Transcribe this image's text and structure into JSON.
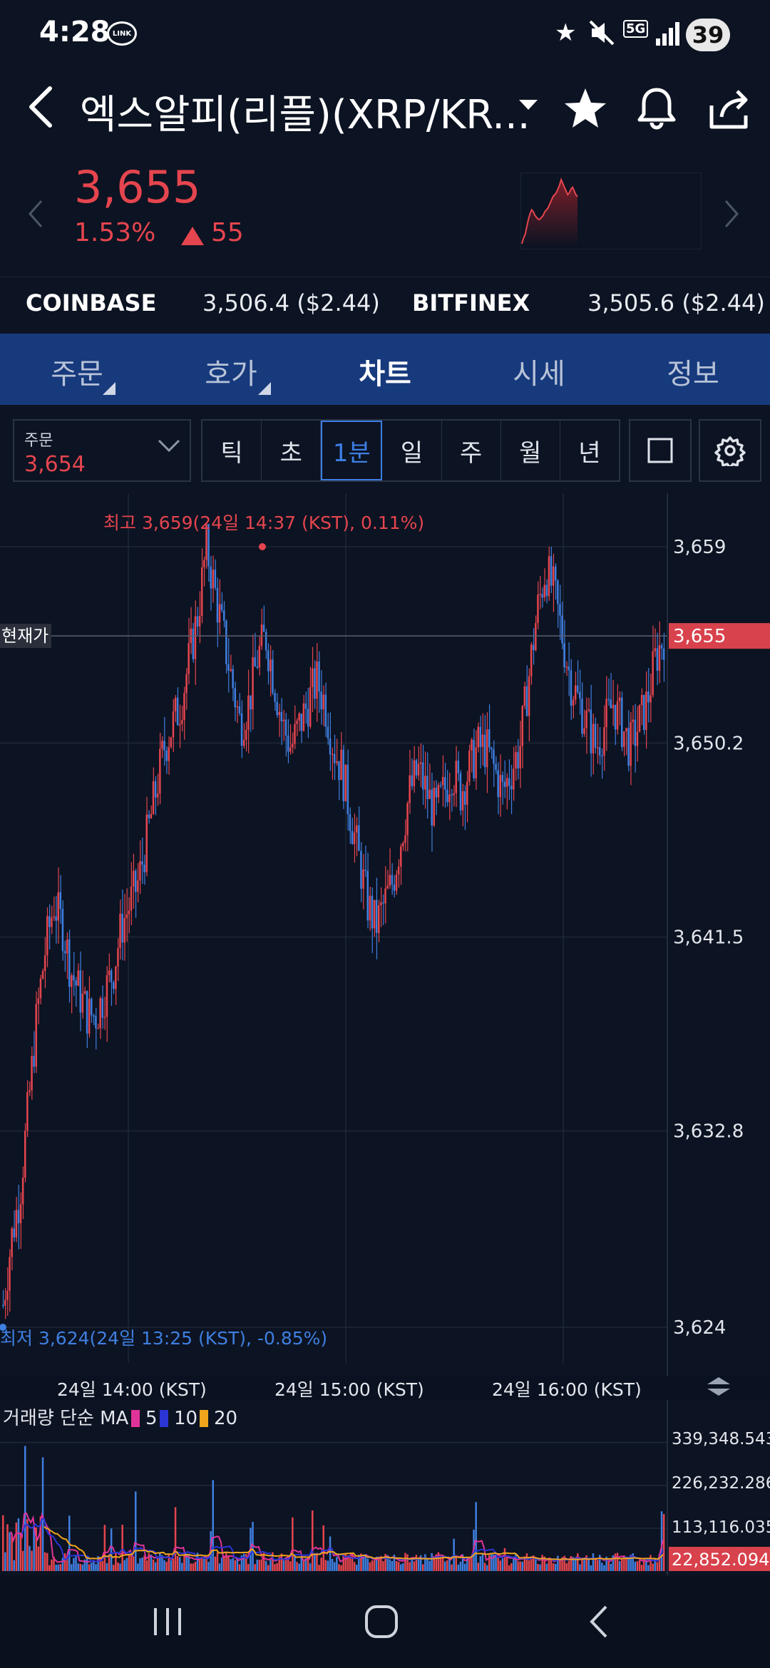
{
  "status_bar": {
    "time": "4:28",
    "link_badge": "LINK",
    "network": "5G",
    "battery": "39"
  },
  "header": {
    "title": "엑스알피(리플)(XRP/KR..."
  },
  "price": {
    "current": "3,655",
    "change_pct": "1.53%",
    "change_abs": "55",
    "direction_icon": "triangle-up-icon"
  },
  "exchanges": [
    {
      "name": "COINBASE",
      "value": "3,506.4 ($2.44)"
    },
    {
      "name": "BITFINEX",
      "value": "3,505.6 ($2.44)"
    }
  ],
  "tabs": [
    {
      "label": "주문"
    },
    {
      "label": "호가"
    },
    {
      "label": "차트"
    },
    {
      "label": "시세"
    },
    {
      "label": "정보"
    }
  ],
  "controls": {
    "order_label": "주문",
    "order_value": "3,654",
    "intervals": [
      "틱",
      "초",
      "1분",
      "일",
      "주",
      "월",
      "년"
    ],
    "active_interval": "1분"
  },
  "chart_data": {
    "type": "candlestick",
    "high_annotation": "최고 3,659(24일 14:37 (KST), 0.11%)",
    "low_annotation": "최저 3,624(24일 13:25 (KST), -0.85%)",
    "current_label": "현재가",
    "current_value": "3,655",
    "y_ticks": [
      "3,659",
      "3,650.2",
      "3,641.5",
      "3,632.8",
      "3,624"
    ],
    "ylim": [
      3624,
      3659
    ],
    "x_ticks": [
      "24일 14:00 (KST)",
      "24일 15:00 (KST)",
      "24일 16:00 (KST)"
    ],
    "close_path": [
      3625,
      3628,
      3630,
      3634,
      3638,
      3641,
      3643,
      3642,
      3640,
      3639,
      3638,
      3638,
      3639,
      3640,
      3642,
      3643,
      3644,
      3646,
      3648,
      3650,
      3651,
      3652,
      3654,
      3656,
      3659,
      3657,
      3655,
      3653,
      3651,
      3652,
      3654,
      3655,
      3653,
      3651,
      3650,
      3651,
      3652,
      3653,
      3652,
      3650,
      3649,
      3647,
      3645,
      3643,
      3642,
      3643,
      3644,
      3646,
      3648,
      3649,
      3648,
      3647,
      3648,
      3649,
      3648,
      3649,
      3650,
      3650,
      3649,
      3648,
      3649,
      3650,
      3653,
      3656,
      3658,
      3657,
      3655,
      3653,
      3652,
      3651,
      3650,
      3651,
      3652,
      3651,
      3650,
      3651,
      3652,
      3654,
      3655
    ],
    "volume": {
      "label": "거래량 단순 MA",
      "ma_periods": [
        "5",
        "10",
        "20"
      ],
      "ma_colors": [
        "#e0339a",
        "#2b35d6",
        "#f0a51c"
      ],
      "y_ticks": [
        "339,348.543",
        "226,232.286",
        "113,116.035"
      ],
      "current": "22,852.094"
    }
  },
  "colors": {
    "up": "#e5454e",
    "down": "#3f7fe0",
    "tab_bar": "#173a7d",
    "background": "#0c1322"
  }
}
